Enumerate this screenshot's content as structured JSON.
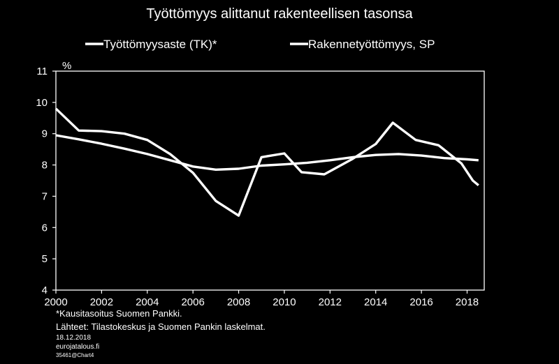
{
  "chart_data": {
    "type": "line",
    "title": "Työttömyys alittanut rakenteellisen tasonsa",
    "ylabel": "%",
    "ylim": [
      4,
      11
    ],
    "yticks": [
      4,
      5,
      6,
      7,
      8,
      9,
      10,
      11
    ],
    "xlim": [
      2000,
      2018.75
    ],
    "xticks": [
      2000,
      2002,
      2004,
      2006,
      2008,
      2010,
      2012,
      2014,
      2016,
      2018
    ],
    "grid": false,
    "legend_position": "top",
    "line_color": "#ffffff",
    "series": [
      {
        "name": "Työttömyysaste (TK)*",
        "x": [
          2000,
          2001,
          2002,
          2003,
          2004,
          2005,
          2006,
          2007,
          2008,
          2009,
          2010,
          2010.75,
          2011.75,
          2013,
          2014,
          2014.75,
          2015.75,
          2016.75,
          2017.75,
          2018.25,
          2018.5
        ],
        "y": [
          9.8,
          9.1,
          9.08,
          9.0,
          8.8,
          8.35,
          7.75,
          6.85,
          6.38,
          8.25,
          8.37,
          7.77,
          7.7,
          8.2,
          8.67,
          9.35,
          8.8,
          8.63,
          8.05,
          7.5,
          7.35
        ]
      },
      {
        "name": "Rakennetyöttömyys, SP",
        "x": [
          2000,
          2001,
          2002,
          2003,
          2004,
          2005,
          2006,
          2007,
          2008,
          2009,
          2010,
          2011,
          2012,
          2013,
          2014,
          2015,
          2016,
          2017,
          2018,
          2018.5
        ],
        "y": [
          8.95,
          8.82,
          8.68,
          8.52,
          8.35,
          8.15,
          7.95,
          7.85,
          7.88,
          7.98,
          8.02,
          8.07,
          8.15,
          8.25,
          8.32,
          8.35,
          8.3,
          8.22,
          8.18,
          8.15
        ]
      }
    ]
  },
  "footnotes": {
    "note": "*Kausitasoitus Suomen Pankki.",
    "sources": "Lähteet: Tilastokeskus ja Suomen Pankin laskelmat.",
    "date": "18.12.2018",
    "site": "eurojatalous.fi",
    "chart_id": "35461@Chart4"
  }
}
